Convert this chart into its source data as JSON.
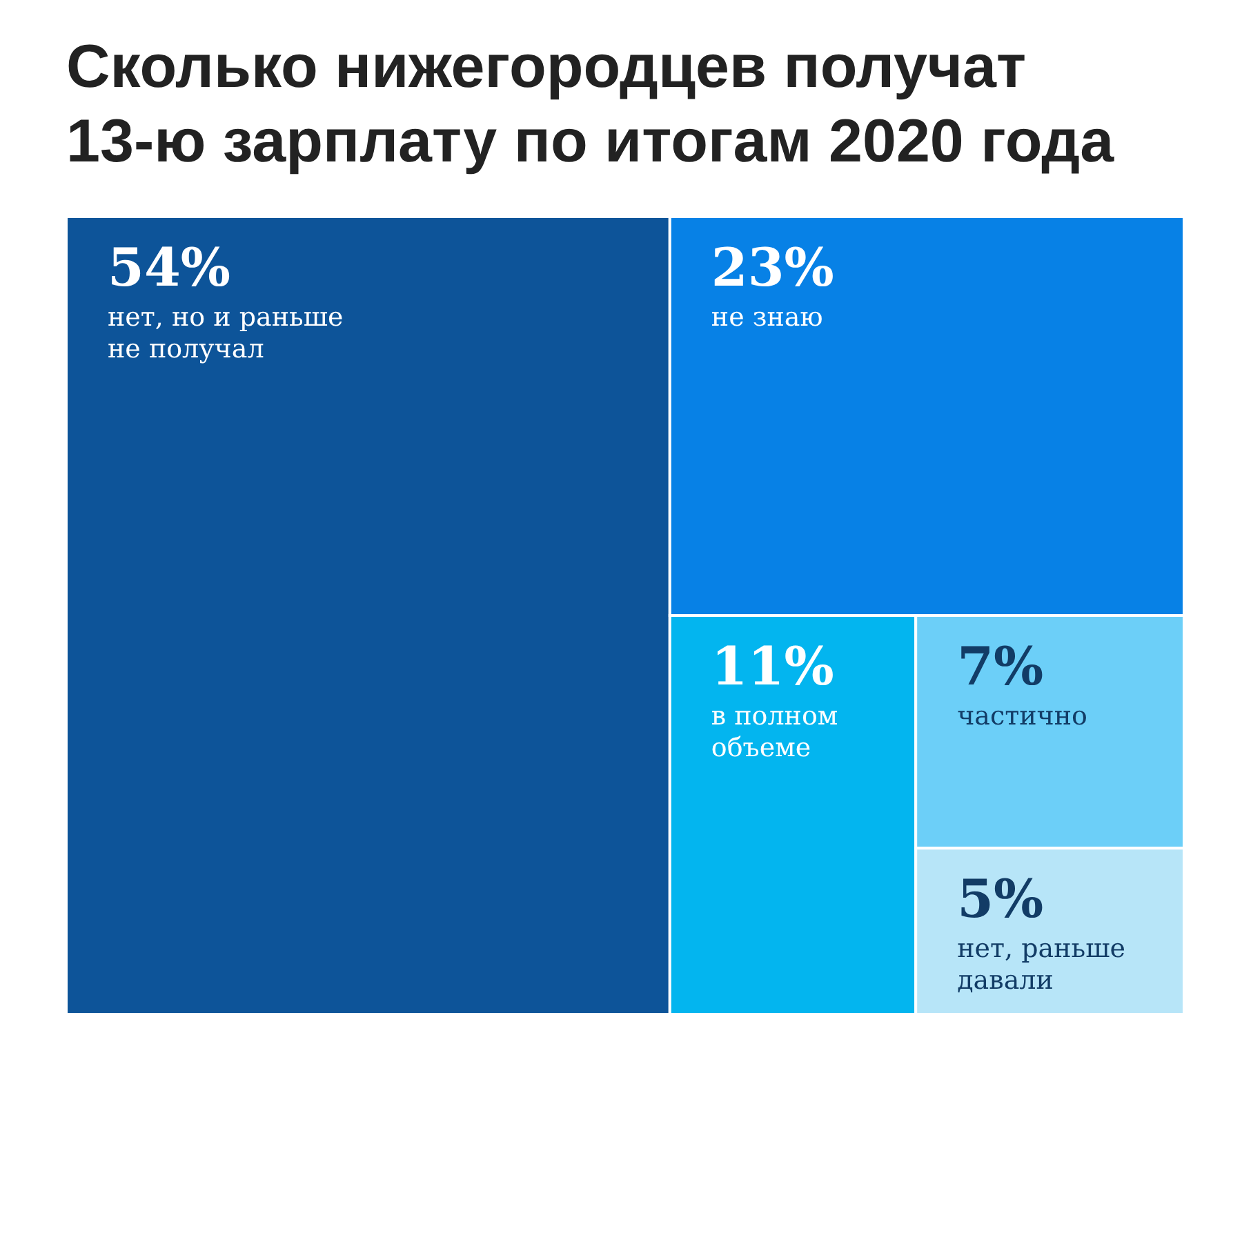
{
  "chart_data": {
    "type": "other",
    "title": "Сколько нижегородцев получат 13-ю зарплату по итогам 2020 года",
    "categories": [
      "нет, но и раньше не получал",
      "не знаю",
      "в полном объеме",
      "частично",
      "нет, раньше давали"
    ],
    "values": [
      54,
      23,
      11,
      7,
      5
    ],
    "value_labels": [
      "54%",
      "23%",
      "11%",
      "7%",
      "5%"
    ],
    "colors": [
      "#0d5499",
      "#0781e6",
      "#03b5ef",
      "#6ccff8",
      "#b7e5f8"
    ]
  }
}
